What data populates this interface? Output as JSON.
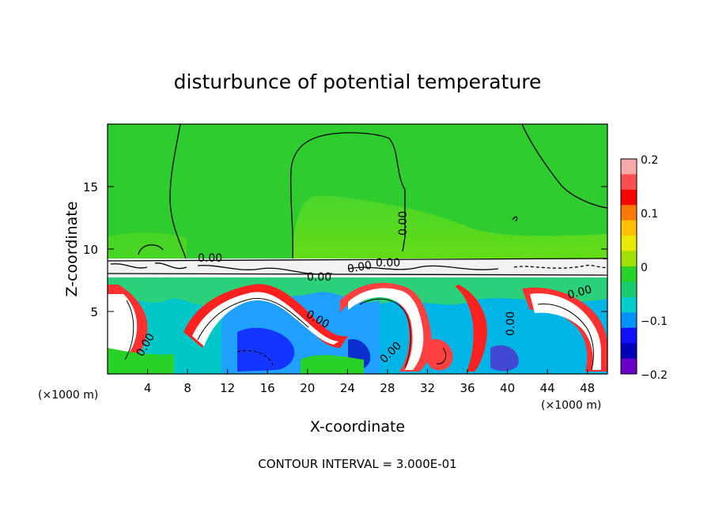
{
  "chart_data": {
    "type": "heatmap",
    "title": "disturbunce of potential temperature",
    "xlabel": "X-coordinate",
    "ylabel": "Z-coordinate",
    "x_unit_left": "(×1000 m)",
    "x_unit_right": "(×1000 m)",
    "footer": "CONTOUR INTERVAL = 3.000E-01",
    "xlim": [
      0,
      50
    ],
    "ylim": [
      0,
      20
    ],
    "x_ticks": [
      "4",
      "8",
      "12",
      "16",
      "20",
      "24",
      "28",
      "32",
      "36",
      "40",
      "44",
      "48"
    ],
    "y_ticks": [
      "5",
      "10",
      "15"
    ],
    "colorbar": {
      "range": [
        -0.2,
        0.2
      ],
      "tick_labels": [
        "0.2",
        "0.1",
        "0",
        "−0.1",
        "−0.2"
      ],
      "colors": [
        "#f7a8a8",
        "#fa5050",
        "#ff0000",
        "#ff7800",
        "#ffc000",
        "#e8e800",
        "#a0e000",
        "#28d228",
        "#18cc6e",
        "#00cccc",
        "#0092ff",
        "#1010ff",
        "#0000b8",
        "#6a00c8"
      ]
    },
    "contour_labels": [
      "0.00",
      "0.00",
      "0.00",
      "0.00",
      "0.00",
      "0.00",
      "0.00",
      "0.00",
      "0.00",
      "0.00"
    ],
    "colors": {
      "upper_layer": "#2ecc2e",
      "upper_layer_light": "#5cdc1c",
      "inversion_band": "#ffffff",
      "contour": "#000000"
    }
  }
}
